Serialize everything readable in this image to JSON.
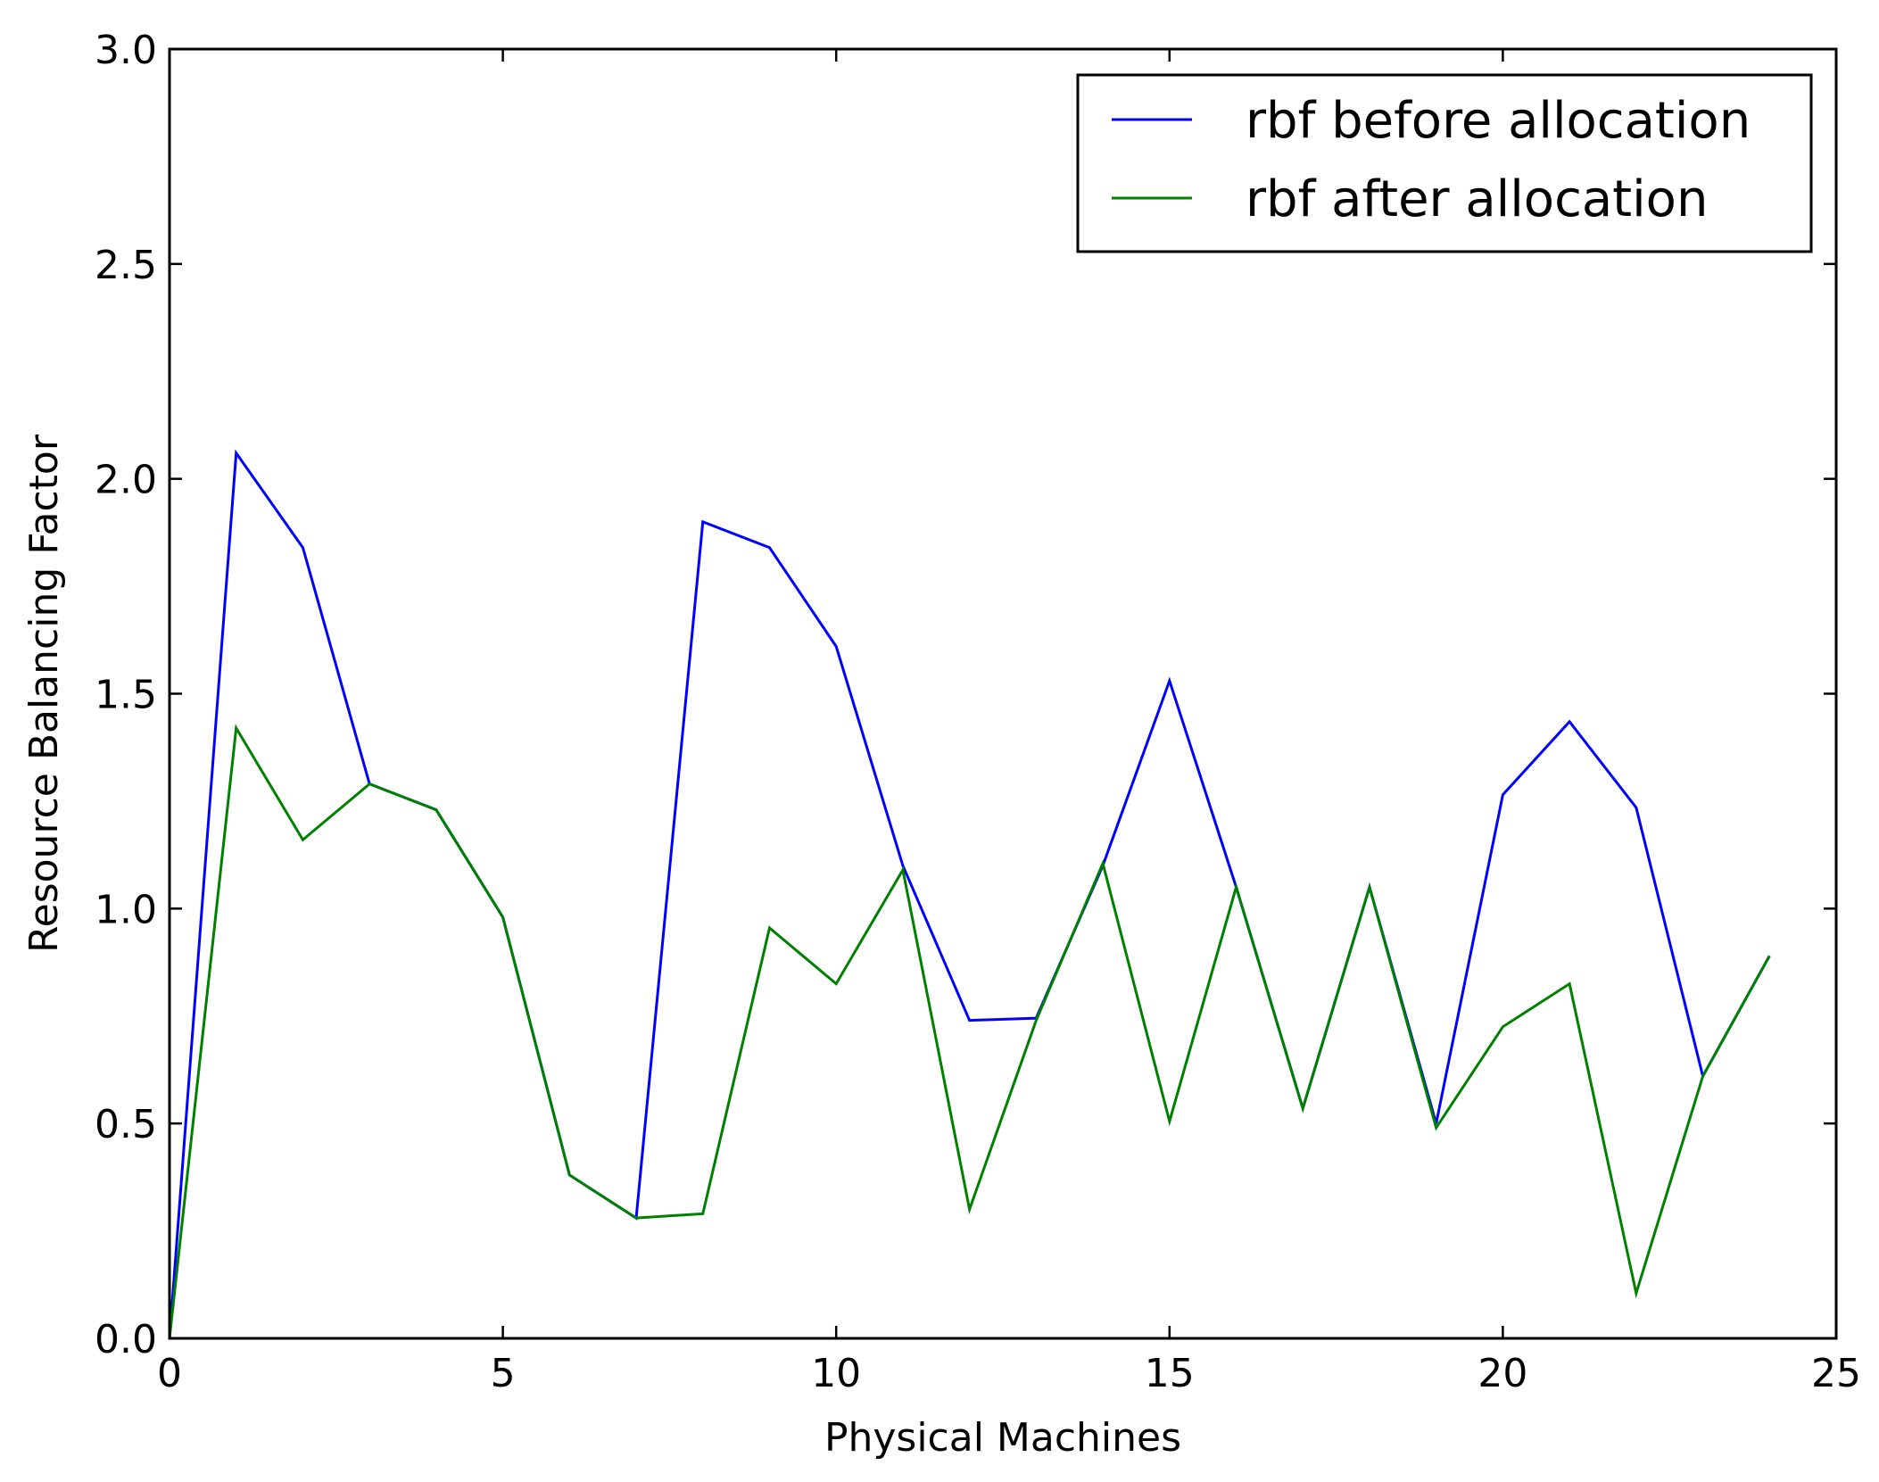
{
  "chart_data": {
    "type": "line",
    "title": "",
    "xlabel": "Physical Machines",
    "ylabel": "Resource Balancing Factor",
    "xlim": [
      0,
      25
    ],
    "ylim": [
      0.0,
      3.0
    ],
    "xticks": [
      0,
      5,
      10,
      15,
      20,
      25
    ],
    "xtick_labels": [
      "0",
      "5",
      "10",
      "15",
      "20",
      "25"
    ],
    "yticks": [
      0.0,
      0.5,
      1.0,
      1.5,
      2.0,
      2.5,
      3.0
    ],
    "ytick_labels": [
      "0.0",
      "0.5",
      "1.0",
      "1.5",
      "2.0",
      "2.5",
      "3.0"
    ],
    "grid": false,
    "legend_position": "top-right",
    "series": [
      {
        "name": "rbf before allocation",
        "color": "#0000ff",
        "x": [
          0,
          1,
          2,
          3,
          4,
          5,
          6,
          7,
          8,
          9,
          10,
          11,
          12,
          13,
          14,
          15,
          16,
          17,
          18,
          19,
          20,
          21,
          22,
          23,
          24
        ],
        "values": [
          0.0,
          2.06,
          1.84,
          1.29,
          1.23,
          0.98,
          0.38,
          0.28,
          1.9,
          1.84,
          1.61,
          1.1,
          0.74,
          0.745,
          1.1,
          1.53,
          1.05,
          0.535,
          1.05,
          0.5,
          1.265,
          1.435,
          1.235,
          0.61,
          0.89
        ]
      },
      {
        "name": "rbf after allocation",
        "color": "#008000",
        "x": [
          0,
          1,
          2,
          3,
          4,
          5,
          6,
          7,
          8,
          9,
          10,
          11,
          12,
          13,
          14,
          15,
          16,
          17,
          18,
          19,
          20,
          21,
          22,
          23,
          24
        ],
        "values": [
          0.0,
          1.42,
          1.16,
          1.29,
          1.23,
          0.98,
          0.38,
          0.28,
          0.29,
          0.955,
          0.825,
          1.09,
          0.3,
          0.74,
          1.105,
          0.505,
          1.05,
          0.535,
          1.05,
          0.49,
          0.725,
          0.825,
          0.105,
          0.61,
          0.89
        ]
      }
    ]
  }
}
